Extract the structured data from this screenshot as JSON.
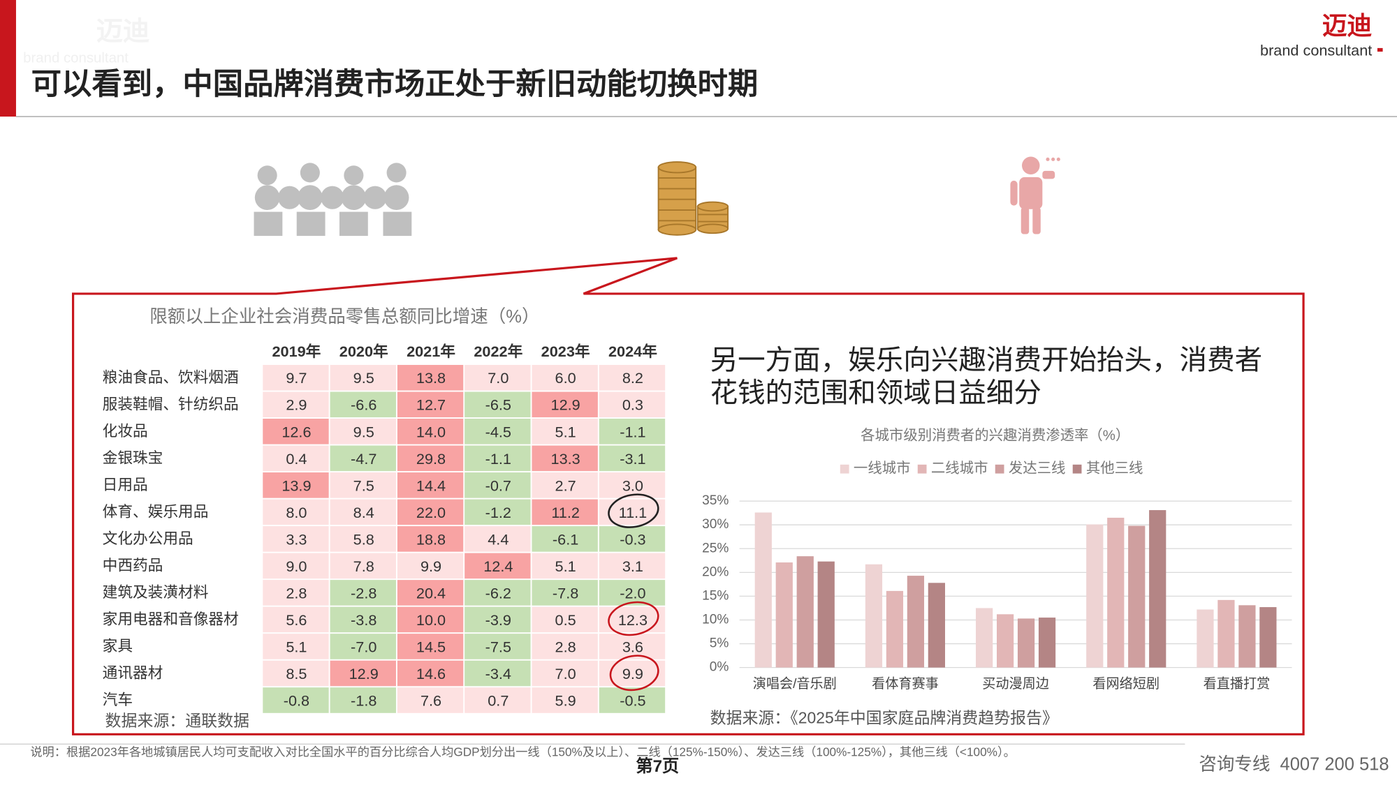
{
  "header": {
    "watermark_name": "迈迪",
    "watermark_tag": "brand consultant",
    "title": "可以看到，中国品牌消费市场正处于新旧动能切换时期",
    "logo_name": "迈迪",
    "logo_tag": "brand consultant"
  },
  "table": {
    "title": "限额以上企业社会消费品零售总额同比增速（%）",
    "columns": [
      "2019年",
      "2020年",
      "2021年",
      "2022年",
      "2023年",
      "2024年"
    ],
    "row_labels": [
      "粮油食品、饮料烟酒",
      "服装鞋帽、针纺织品",
      "化妆品",
      "金银珠宝",
      "日用品",
      "体育、娱乐用品",
      "文化办公用品",
      "中西药品",
      "建筑及装潢材料",
      "家用电器和音像器材",
      "家具",
      "通讯器材",
      "汽车"
    ],
    "rows": [
      [
        "9.7",
        "9.5",
        "13.8",
        "7.0",
        "6.0",
        "8.2"
      ],
      [
        "2.9",
        "-6.6",
        "12.7",
        "-6.5",
        "12.9",
        "0.3"
      ],
      [
        "12.6",
        "9.5",
        "14.0",
        "-4.5",
        "5.1",
        "-1.1"
      ],
      [
        "0.4",
        "-4.7",
        "29.8",
        "-1.1",
        "13.3",
        "-3.1"
      ],
      [
        "13.9",
        "7.5",
        "14.4",
        "-0.7",
        "2.7",
        "3.0"
      ],
      [
        "8.0",
        "8.4",
        "22.0",
        "-1.2",
        "11.2",
        "11.1"
      ],
      [
        "3.3",
        "5.8",
        "18.8",
        "4.4",
        "-6.1",
        "-0.3"
      ],
      [
        "9.0",
        "7.8",
        "9.9",
        "12.4",
        "5.1",
        "3.1"
      ],
      [
        "2.8",
        "-2.8",
        "20.4",
        "-6.2",
        "-7.8",
        "-2.0"
      ],
      [
        "5.6",
        "-3.8",
        "10.0",
        "-3.9",
        "0.5",
        "12.3"
      ],
      [
        "5.1",
        "-7.0",
        "14.5",
        "-7.5",
        "2.8",
        "3.6"
      ],
      [
        "8.5",
        "12.9",
        "14.6",
        "-3.4",
        "7.0",
        "9.9"
      ],
      [
        "-0.8",
        "-1.8",
        "7.6",
        "0.7",
        "5.9",
        "-0.5"
      ]
    ],
    "cell_fill": [
      [
        "P",
        "P",
        "R",
        "P",
        "P",
        "P"
      ],
      [
        "P",
        "G",
        "R",
        "G",
        "R",
        "P"
      ],
      [
        "R",
        "P",
        "R",
        "G",
        "P",
        "G"
      ],
      [
        "P",
        "G",
        "R",
        "G",
        "R",
        "G"
      ],
      [
        "R",
        "P",
        "R",
        "G",
        "P",
        "P"
      ],
      [
        "P",
        "P",
        "R",
        "G",
        "R",
        "P"
      ],
      [
        "P",
        "P",
        "R",
        "P",
        "G",
        "G"
      ],
      [
        "P",
        "P",
        "P",
        "R",
        "P",
        "P"
      ],
      [
        "P",
        "G",
        "R",
        "G",
        "G",
        "G"
      ],
      [
        "P",
        "G",
        "R",
        "G",
        "P",
        "P"
      ],
      [
        "P",
        "G",
        "R",
        "G",
        "P",
        "P"
      ],
      [
        "P",
        "R",
        "R",
        "G",
        "P",
        "P"
      ],
      [
        "G",
        "G",
        "P",
        "P",
        "P",
        "G"
      ]
    ],
    "fill_colors": {
      "R": "#f8a3a3",
      "P": "#fde1e1",
      "G": "#c6e0b4"
    },
    "source": "数据来源：通联数据"
  },
  "commentary": [
    "另一方面，娱乐向兴趣消费开始抬头，消费者",
    "花钱的范围和领域日益细分"
  ],
  "chart_data": {
    "type": "bar",
    "title": "各城市级别消费者的兴趣消费渗透率（%）",
    "categories": [
      "演唱会/音乐剧",
      "看体育赛事",
      "买动漫周边",
      "看网络短剧",
      "看直播打赏"
    ],
    "series": [
      {
        "name": "一线城市",
        "color": "#eed3d3",
        "values": [
          32.6,
          21.7,
          12.5,
          30.1,
          12.2
        ]
      },
      {
        "name": "二线城市",
        "color": "#e2b6b6",
        "values": [
          22.1,
          16.1,
          11.2,
          31.5,
          14.2
        ]
      },
      {
        "name": "发达三线",
        "color": "#cf9f9f",
        "values": [
          23.4,
          19.3,
          10.3,
          29.8,
          13.1
        ]
      },
      {
        "name": "其他三线",
        "color": "#b48585",
        "values": [
          22.3,
          17.8,
          10.5,
          33.1,
          12.7
        ]
      }
    ],
    "ylim": [
      0,
      35
    ],
    "yticks": [
      {
        "value": 0,
        "label": "0%"
      },
      {
        "value": 5,
        "label": "5%"
      },
      {
        "value": 10,
        "label": "10%"
      },
      {
        "value": 15,
        "label": "15%"
      },
      {
        "value": 20,
        "label": "20%"
      },
      {
        "value": 25,
        "label": "25%"
      },
      {
        "value": 30,
        "label": "30%"
      },
      {
        "value": 35,
        "label": "35%"
      }
    ],
    "grid": true,
    "legend": "top",
    "source": "数据来源：《2025年中国家庭品牌消费趋势报告》"
  },
  "footer": {
    "note": "说明：根据2023年各地城镇居民人均可支配收入对比全国水平的百分比综合人均GDP划分出一线（150%及以上）、二线（125%-150%）、发达三线（100%-125%），其他三线（<100%）。",
    "page": "第7页",
    "hotline": "咨询专线  4007 200 518"
  }
}
